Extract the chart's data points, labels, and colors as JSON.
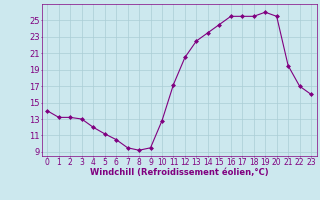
{
  "x": [
    0,
    1,
    2,
    3,
    4,
    5,
    6,
    7,
    8,
    9,
    10,
    11,
    12,
    13,
    14,
    15,
    16,
    17,
    18,
    19,
    20,
    21,
    22,
    23
  ],
  "y": [
    14.0,
    13.2,
    13.2,
    13.0,
    12.0,
    11.2,
    10.5,
    9.5,
    9.2,
    9.5,
    12.8,
    17.2,
    20.5,
    22.5,
    23.5,
    24.5,
    25.5,
    25.5,
    25.5,
    26.0,
    25.5,
    19.5,
    17.0,
    16.0
  ],
  "line_color": "#800080",
  "marker": "D",
  "marker_size": 2,
  "bg_color": "#cce8ee",
  "grid_color": "#aacdd5",
  "xlabel": "Windchill (Refroidissement éolien,°C)",
  "xlabel_color": "#800080",
  "tick_color": "#800080",
  "ylim": [
    8.5,
    27.0
  ],
  "yticks": [
    9,
    11,
    13,
    15,
    17,
    19,
    21,
    23,
    25
  ],
  "xlim": [
    -0.5,
    23.5
  ],
  "xticks": [
    0,
    1,
    2,
    3,
    4,
    5,
    6,
    7,
    8,
    9,
    10,
    11,
    12,
    13,
    14,
    15,
    16,
    17,
    18,
    19,
    20,
    21,
    22,
    23
  ],
  "tick_fontsize": 5.5,
  "xlabel_fontsize": 6.0
}
